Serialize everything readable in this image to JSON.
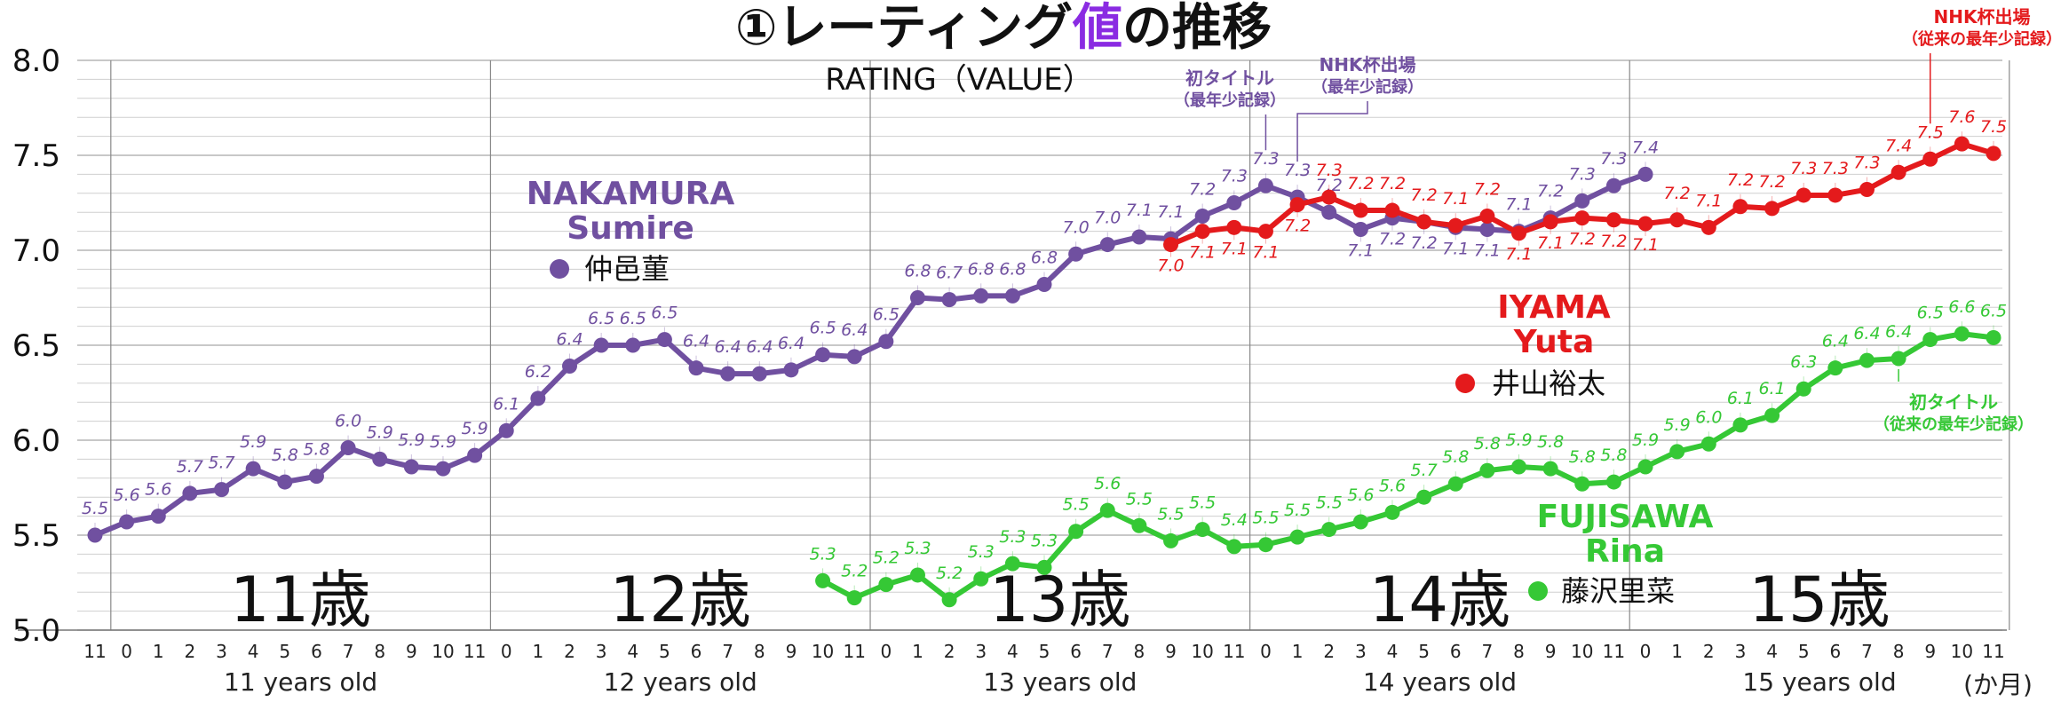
{
  "title": {
    "prefix": "①レーティング",
    "highlight": "値",
    "suffix": "の推移",
    "highlight_color": "#8a2be2"
  },
  "subtitle": "RATING（VALUE）",
  "unit_label": "(か月)",
  "colors": {
    "nakamura": "#7050a0",
    "iyama": "#e41a1c",
    "fujisawa": "#35c835",
    "grid": "#cfcfcf",
    "year_grid": "#888888"
  },
  "age_groups": [
    {
      "big": "11歳",
      "small": "11 years old"
    },
    {
      "big": "12歳",
      "small": "12 years old"
    },
    {
      "big": "13歳",
      "small": "13 years old"
    },
    {
      "big": "14歳",
      "small": "14 years old"
    },
    {
      "big": "15歳",
      "small": "15 years old"
    }
  ],
  "legend": {
    "nakamura": {
      "name1": "NAKAMURA",
      "name2": "Sumire",
      "kanji": "仲邑菫"
    },
    "iyama": {
      "name1": "IYAMA",
      "name2": "Yuta",
      "kanji": "井山裕太"
    },
    "fujisawa": {
      "name1": "FUJISAWA",
      "name2": "Rina",
      "kanji": "藤沢里菜"
    }
  },
  "annotations": [
    {
      "series": "nakamura",
      "index": 37,
      "line1": "初タイトル",
      "line2": "（最年少記録）"
    },
    {
      "series": "nakamura",
      "index": 38,
      "line1": "NHK杯出場",
      "line2": "（最年少記録）"
    },
    {
      "series": "iyama",
      "index": 58,
      "line1": "NHK杯出場",
      "line2": "（従来の最年少記録）"
    },
    {
      "series": "fujisawa",
      "index": 57,
      "line1": "初タイトル",
      "line2": "（従来の最年少記録）"
    }
  ],
  "chart_data": {
    "type": "line",
    "x_tick_labels": [
      "11",
      "0",
      "1",
      "2",
      "3",
      "4",
      "5",
      "6",
      "7",
      "8",
      "9",
      "10",
      "11",
      "0",
      "1",
      "2",
      "3",
      "4",
      "5",
      "6",
      "7",
      "8",
      "9",
      "10",
      "11",
      "0",
      "1",
      "2",
      "3",
      "4",
      "5",
      "6",
      "7",
      "8",
      "9",
      "10",
      "11",
      "0",
      "1",
      "2",
      "3",
      "4",
      "5",
      "6",
      "7",
      "8",
      "9",
      "10",
      "11",
      "0",
      "1",
      "2",
      "3",
      "4",
      "5",
      "6",
      "7",
      "8",
      "9",
      "10",
      "11"
    ],
    "ylim": [
      5.0,
      8.0
    ],
    "y_ticks": [
      "5.0",
      "5.5",
      "6.0",
      "6.5",
      "7.0",
      "7.5",
      "8.0"
    ],
    "series": [
      {
        "key": "nakamura",
        "start_index": 0,
        "values": [
          5.5,
          5.57,
          5.6,
          5.72,
          5.74,
          5.85,
          5.78,
          5.81,
          5.96,
          5.9,
          5.86,
          5.85,
          5.92,
          6.05,
          6.22,
          6.39,
          6.5,
          6.5,
          6.53,
          6.38,
          6.35,
          6.35,
          6.37,
          6.45,
          6.44,
          6.52,
          6.75,
          6.74,
          6.76,
          6.76,
          6.82,
          6.98,
          7.03,
          7.07,
          7.06,
          7.18,
          7.25,
          7.34,
          7.28,
          7.2,
          7.11,
          7.17,
          7.15,
          7.12,
          7.11,
          7.1,
          7.17,
          7.26,
          7.34,
          7.4
        ],
        "labels": [
          "5.5",
          "5.6",
          "5.6",
          "5.7",
          "5.7",
          "5.9",
          "5.8",
          "5.8",
          "6.0",
          "5.9",
          "5.9",
          "5.9",
          "5.9",
          "6.1",
          "6.2",
          "6.4",
          "6.5",
          "6.5",
          "6.5",
          "6.4",
          "6.4",
          "6.4",
          "6.4",
          "6.5",
          "6.4",
          "6.5",
          "6.8",
          "6.7",
          "6.8",
          "6.8",
          "6.8",
          "7.0",
          "7.0",
          "7.1",
          "7.1",
          "7.2",
          "7.3",
          "7.3",
          "7.3",
          "7.2",
          "7.1",
          "7.2",
          "7.2",
          "7.1",
          "7.1",
          "7.1",
          "7.2",
          "7.3",
          "7.3",
          "7.4"
        ],
        "label_pos": [
          "above",
          "above",
          "above",
          "above",
          "above",
          "above",
          "above",
          "above",
          "above",
          "above",
          "above",
          "above",
          "above",
          "above",
          "above",
          "above",
          "above",
          "above",
          "above",
          "above",
          "above",
          "above",
          "above",
          "above",
          "above",
          "above",
          "above",
          "above",
          "above",
          "above",
          "above",
          "above",
          "above",
          "above",
          "above",
          "above",
          "above",
          "above",
          "above",
          "above",
          "below",
          "below",
          "below",
          "below",
          "below",
          "above",
          "above",
          "above",
          "above",
          "above"
        ]
      },
      {
        "key": "iyama",
        "start_index": 34,
        "values": [
          7.03,
          7.1,
          7.12,
          7.1,
          7.24,
          7.28,
          7.21,
          7.21,
          7.15,
          7.13,
          7.18,
          7.09,
          7.15,
          7.17,
          7.16,
          7.14,
          7.16,
          7.12,
          7.23,
          7.22,
          7.29,
          7.29,
          7.32,
          7.41,
          7.48,
          7.56,
          7.51
        ],
        "labels": [
          "7.0",
          "7.1",
          "7.1",
          "7.1",
          "7.2",
          "7.3",
          "7.2",
          "7.2",
          "7.2",
          "7.1",
          "7.2",
          "7.1",
          "7.1",
          "7.2",
          "7.2",
          "7.1",
          "7.2",
          "7.1",
          "7.2",
          "7.2",
          "7.3",
          "7.3",
          "7.3",
          "7.4",
          "7.5",
          "7.6",
          "7.5"
        ],
        "label_pos": [
          "below",
          "below",
          "below",
          "below",
          "below",
          "above",
          "above",
          "above",
          "above",
          "above",
          "above",
          "below",
          "below",
          "below",
          "below",
          "below",
          "above",
          "above",
          "above",
          "above",
          "above",
          "above",
          "above",
          "above",
          "above",
          "above",
          "above"
        ]
      },
      {
        "key": "fujisawa",
        "start_index": 23,
        "values": [
          5.26,
          5.17,
          5.24,
          5.29,
          5.16,
          5.27,
          5.35,
          5.33,
          5.52,
          5.63,
          5.55,
          5.47,
          5.53,
          5.44,
          5.45,
          5.49,
          5.53,
          5.57,
          5.62,
          5.7,
          5.77,
          5.84,
          5.86,
          5.85,
          5.77,
          5.78,
          5.86,
          5.94,
          5.98,
          6.08,
          6.13,
          6.27,
          6.38,
          6.42,
          6.43,
          6.53,
          6.56,
          6.54
        ],
        "labels": [
          "5.3",
          "5.2",
          "5.2",
          "5.3",
          "5.2",
          "5.3",
          "5.3",
          "5.3",
          "5.5",
          "5.6",
          "5.5",
          "5.5",
          "5.5",
          "5.4",
          "5.5",
          "5.5",
          "5.5",
          "5.6",
          "5.6",
          "5.7",
          "5.8",
          "5.8",
          "5.9",
          "5.8",
          "5.8",
          "5.8",
          "5.9",
          "5.9",
          "6.0",
          "6.1",
          "6.1",
          "6.3",
          "6.4",
          "6.4",
          "6.4",
          "6.5",
          "6.6",
          "6.5"
        ],
        "label_pos": [
          "above",
          "above",
          "above",
          "above",
          "above",
          "above",
          "above",
          "above",
          "above",
          "above",
          "above",
          "above",
          "above",
          "above",
          "above",
          "above",
          "above",
          "above",
          "above",
          "above",
          "above",
          "above",
          "above",
          "above",
          "above",
          "above",
          "above",
          "above",
          "above",
          "above",
          "above",
          "above",
          "above",
          "above",
          "above",
          "above",
          "above",
          "above"
        ]
      }
    ]
  }
}
